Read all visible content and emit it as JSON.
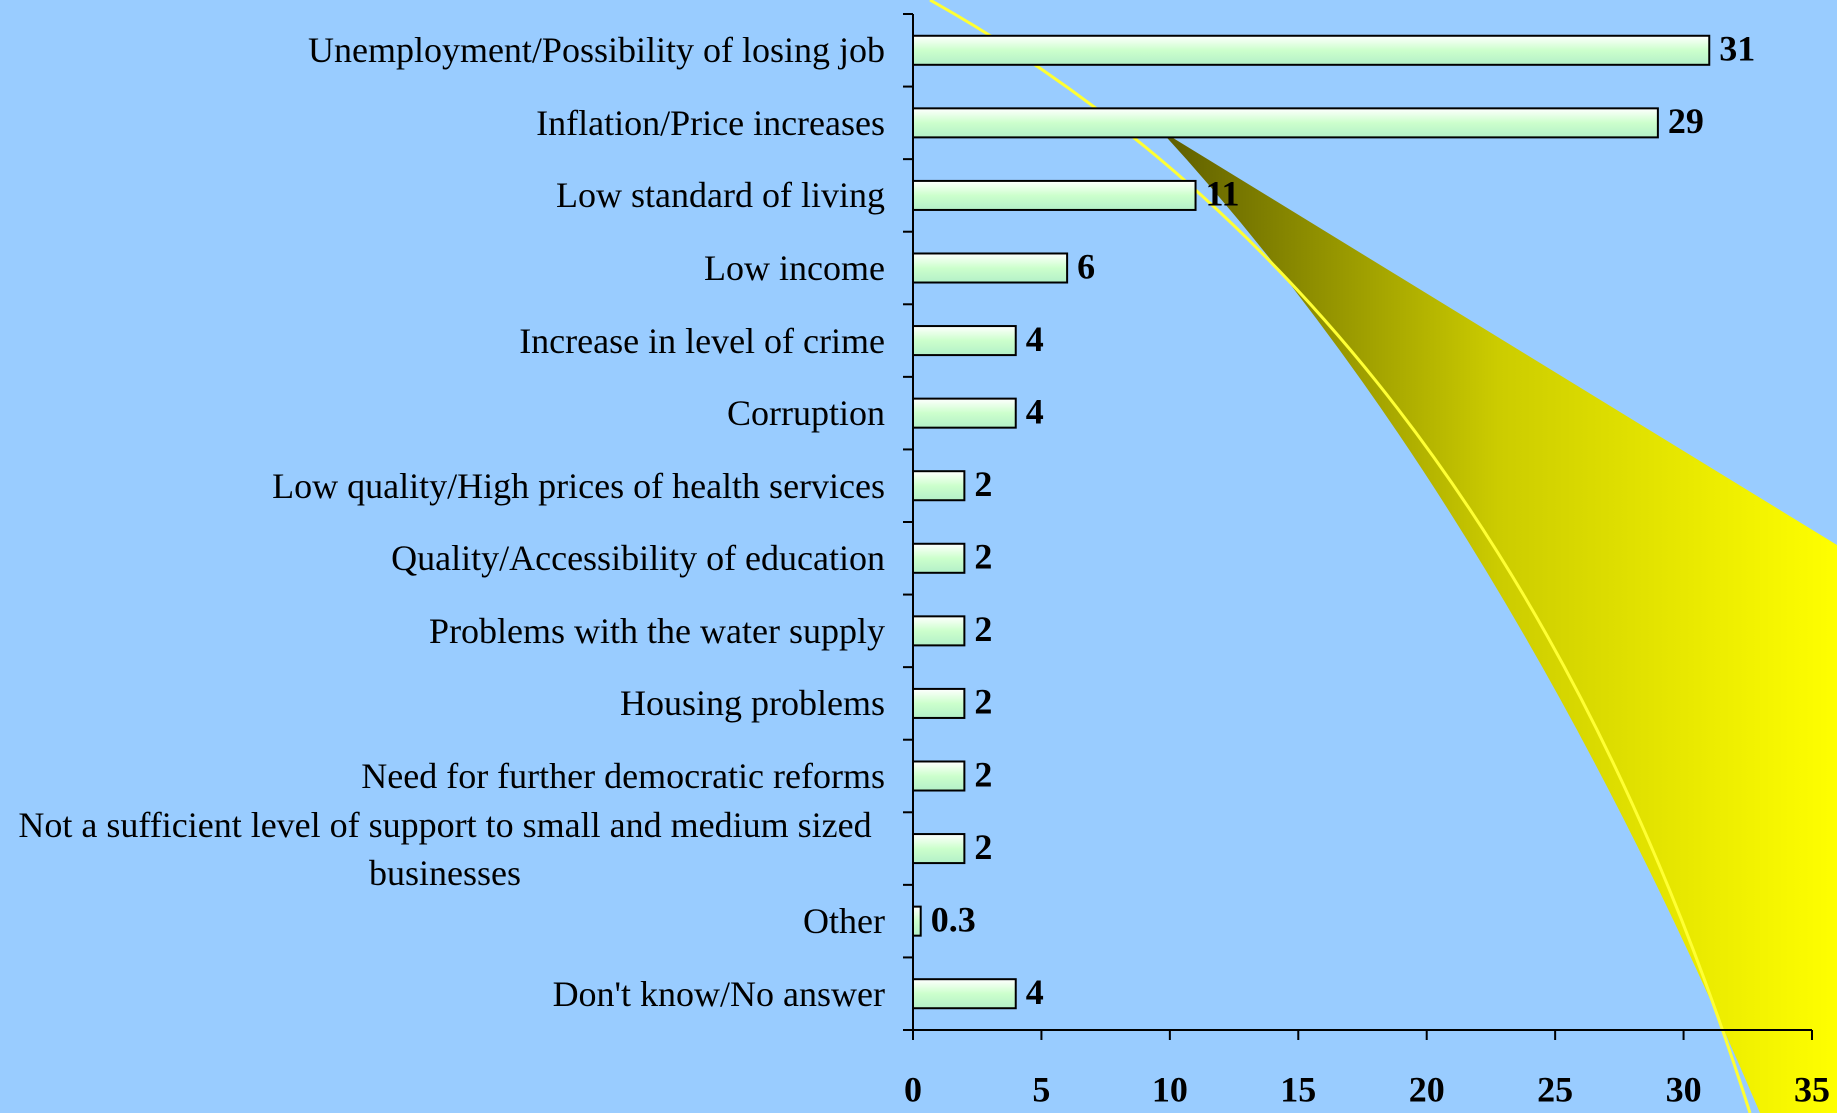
{
  "chart_data": {
    "type": "bar",
    "orientation": "horizontal",
    "categories": [
      "Unemployment/Possibility of losing job",
      "Inflation/Price increases",
      "Low standard of living",
      "Low income",
      "Increase in level of crime",
      "Corruption",
      "Low quality/High prices of health services",
      "Quality/Accessibility of education",
      "Problems with the water supply",
      "Housing problems",
      "Need for further democratic reforms",
      "Not a sufficient level of support to small and medium sized businesses",
      "Other",
      "Don't know/No answer"
    ],
    "values": [
      31,
      29,
      11,
      6,
      4,
      4,
      2,
      2,
      2,
      2,
      2,
      2,
      0.3,
      4
    ],
    "color": "#ccffcc",
    "xlim": [
      0,
      35
    ],
    "xticks": [
      0,
      5,
      10,
      15,
      20,
      25,
      30,
      35
    ],
    "grid": false
  }
}
